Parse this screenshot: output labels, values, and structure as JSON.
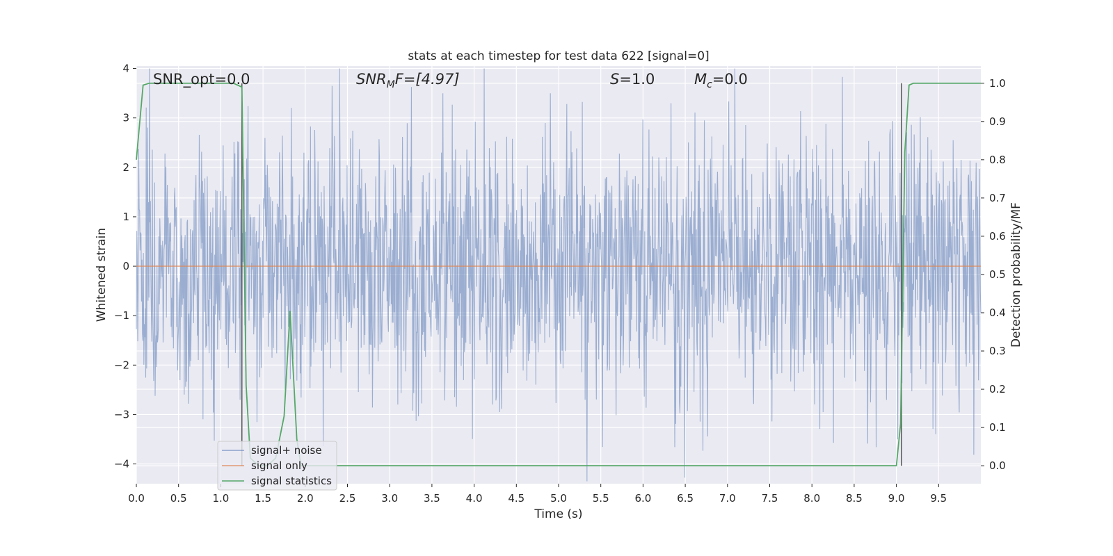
{
  "chart_data": {
    "type": "line",
    "title": "stats at each timestep for test data 622 [signal=0]",
    "xlabel": "Time (s)",
    "ylabel": "Whitened strain",
    "y2label": "Detection probability/MF",
    "xlim": [
      0,
      10
    ],
    "ylim": [
      -4.4,
      4.05
    ],
    "y2lim": [
      -0.047,
      1.045
    ],
    "xticks": [
      0.0,
      0.5,
      1.0,
      1.5,
      2.0,
      2.5,
      3.0,
      3.5,
      4.0,
      4.5,
      5.0,
      5.5,
      6.0,
      6.5,
      7.0,
      7.5,
      8.0,
      8.5,
      9.0,
      9.5
    ],
    "xtick_labels": [
      "0.0",
      "0.5",
      "1.0",
      "1.5",
      "2.0",
      "2.5",
      "3.0",
      "3.5",
      "4.0",
      "4.5",
      "5.0",
      "5.5",
      "6.0",
      "6.5",
      "7.0",
      "7.5",
      "8.0",
      "8.5",
      "9.0",
      "9.5"
    ],
    "yticks": [
      4,
      3,
      2,
      1,
      0,
      -1,
      -2,
      -3,
      -4
    ],
    "ytick_labels": [
      "4",
      "3",
      "2",
      "1",
      "0",
      "−1",
      "−2",
      "−3",
      "−4"
    ],
    "y2ticks": [
      1.0,
      0.9,
      0.8,
      0.7,
      0.6,
      0.5,
      0.4,
      0.3,
      0.2,
      0.1,
      0.0
    ],
    "y2tick_labels": [
      "1.0",
      "0.9",
      "0.8",
      "0.7",
      "0.6",
      "0.5",
      "0.4",
      "0.3",
      "0.2",
      "0.1",
      "0.0"
    ],
    "grid": true,
    "legend_position": "lower-left",
    "annotations": {
      "snr_opt": "SNR_opt=0.0",
      "snr_mf_base": "SNR",
      "snr_mf_sub": "M",
      "snr_mf_rest": "F=[4.97]",
      "s_var": "S",
      "s_rest": "=1.0",
      "mc_var": "M",
      "mc_sub": "c",
      "mc_rest": "=0.0"
    },
    "series": [
      {
        "name": "signal+ noise",
        "color": "#4c72b0",
        "kind": "noise",
        "amplitude": 1.35
      },
      {
        "name": "signal only",
        "color": "#dd8452",
        "x": [
          0,
          10
        ],
        "y": [
          0,
          0
        ]
      },
      {
        "name": "signal statistics",
        "color": "#55a868",
        "axis": "right",
        "x": [
          0.0,
          0.08,
          0.15,
          0.4,
          0.8,
          1.0,
          1.15,
          1.25,
          1.3,
          1.35,
          1.45,
          1.55,
          1.65,
          1.75,
          1.82,
          1.9,
          1.95,
          2.0,
          2.5,
          3.0,
          4.0,
          5.0,
          6.0,
          7.0,
          8.0,
          8.5,
          8.9,
          9.0,
          9.05,
          9.1,
          9.15,
          9.2,
          9.5,
          10.0
        ],
        "y": [
          0.8,
          0.995,
          1.0,
          1.0,
          1.0,
          1.0,
          1.0,
          0.99,
          0.21,
          0.02,
          0.0,
          0.0,
          0.02,
          0.13,
          0.405,
          0.07,
          0.0,
          0.0,
          0.0,
          0.0,
          0.0,
          0.0,
          0.0,
          0.0,
          0.0,
          0.0,
          0.0,
          0.0,
          0.11,
          0.82,
          0.995,
          1.0,
          1.0,
          1.0
        ]
      }
    ],
    "vertical_markers": [
      {
        "x": 1.25,
        "y2_from": 0.0,
        "y2_to": 1.0,
        "color": "#555555"
      },
      {
        "x": 9.06,
        "y2_from": 0.0,
        "y2_to": 1.0,
        "color": "#555555"
      }
    ]
  }
}
